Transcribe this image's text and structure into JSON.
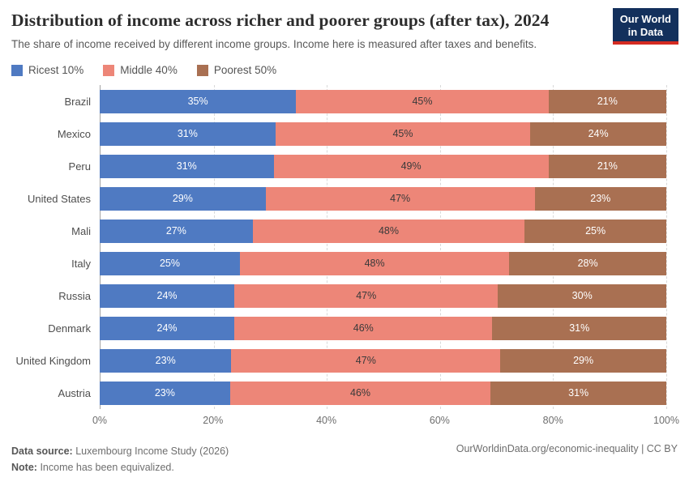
{
  "header": {
    "title": "Distribution of income across richer and poorer groups (after tax), 2024",
    "subtitle": "The share of income received by different income groups. Income here is measured after taxes and benefits."
  },
  "logo": {
    "line1": "Our World",
    "line2": "in Data",
    "background": "#13305c",
    "underline": "#d42b21"
  },
  "chart_data": {
    "type": "bar",
    "orientation": "horizontal",
    "stacked": true,
    "title": "Distribution of income across richer and poorer groups (after tax), 2024",
    "categories": [
      "Brazil",
      "Mexico",
      "Peru",
      "United States",
      "Mali",
      "Italy",
      "Russia",
      "Denmark",
      "United Kingdom",
      "Austria"
    ],
    "series": [
      {
        "name": "Ricest 10%",
        "color": "#4f7ac2",
        "values": [
          35,
          31,
          31,
          29,
          27,
          25,
          24,
          24,
          23,
          23
        ]
      },
      {
        "name": "Middle 40%",
        "color": "#ed8678",
        "values": [
          45,
          45,
          49,
          47,
          48,
          48,
          47,
          46,
          47,
          46
        ]
      },
      {
        "name": "Poorest 50%",
        "color": "#a97052",
        "values": [
          21,
          24,
          21,
          23,
          25,
          28,
          30,
          31,
          29,
          31
        ]
      }
    ],
    "value_suffix": "%",
    "xlim": [
      0,
      100
    ],
    "x_ticks": [
      "0%",
      "20%",
      "40%",
      "60%",
      "80%",
      "100%"
    ],
    "grid": true,
    "legend_position": "top"
  },
  "footer": {
    "source_label": "Data source:",
    "source_text": "Luxembourg Income Study (2026)",
    "note_label": "Note:",
    "note_text": "Income has been equivalized.",
    "link": "OurWorldinData.org/economic-inequality | CC BY"
  }
}
